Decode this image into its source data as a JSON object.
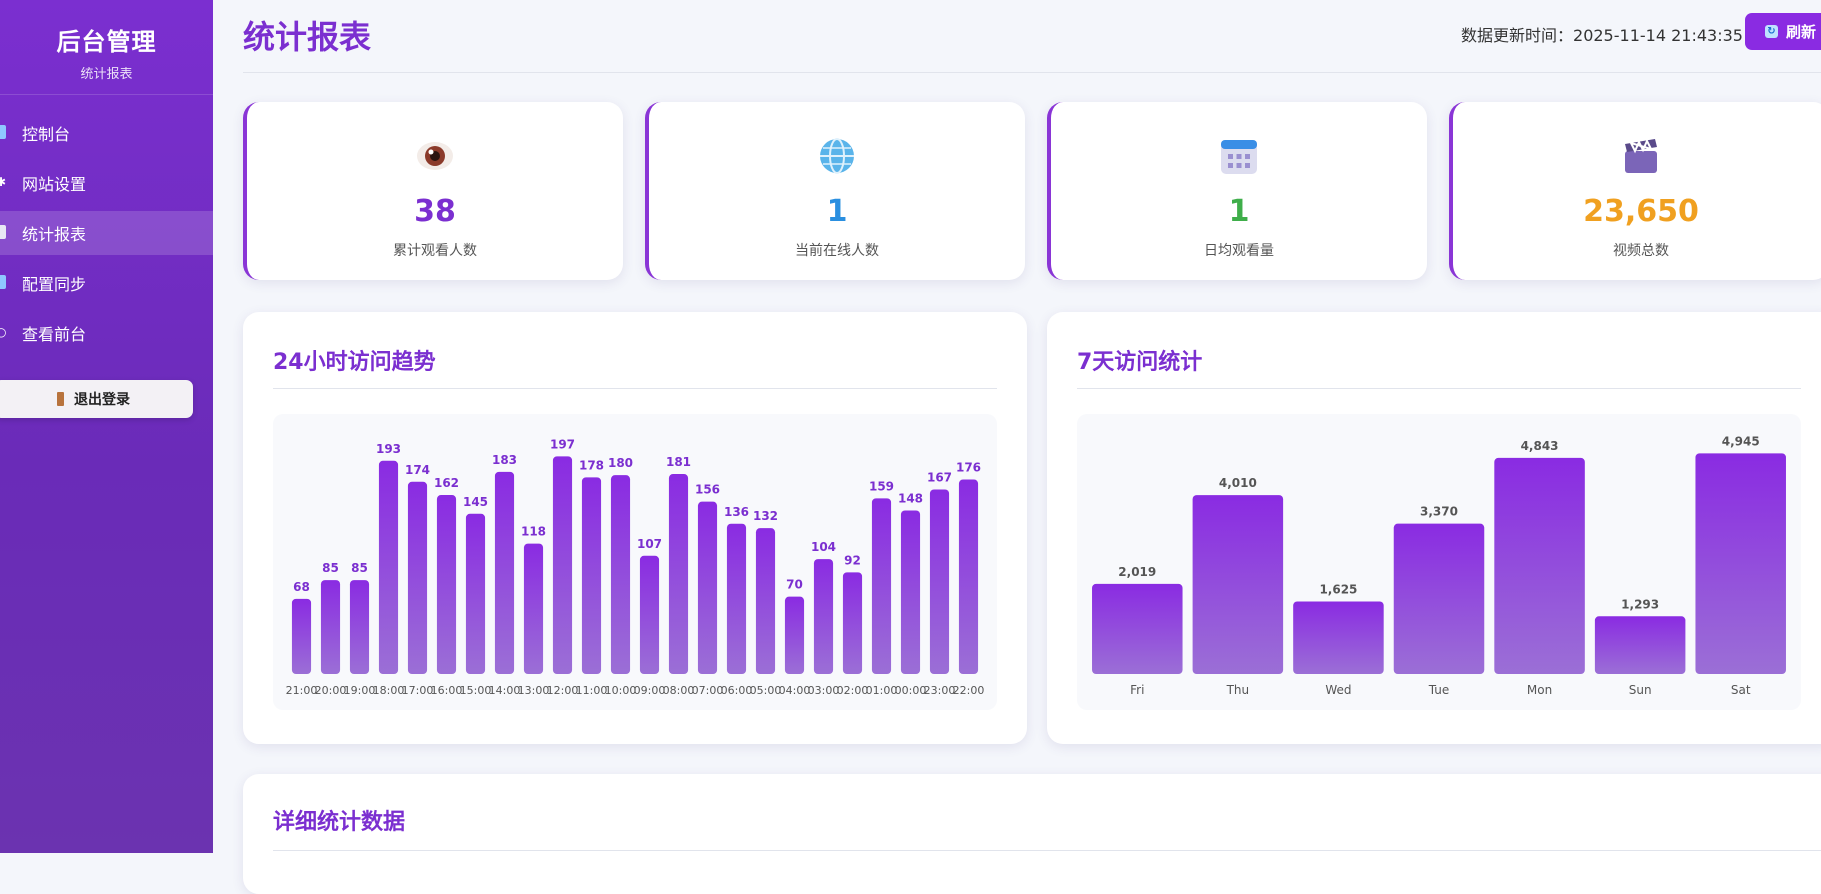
{
  "sidebar": {
    "title": "后台管理",
    "subtitle": "统计报表",
    "items": [
      {
        "label": "控制台",
        "icon": "dashboard-icon"
      },
      {
        "label": "网站设置",
        "icon": "gear-icon"
      },
      {
        "label": "统计报表",
        "icon": "report-icon",
        "active": true
      },
      {
        "label": "配置同步",
        "icon": "sync-icon"
      },
      {
        "label": "查看前台",
        "icon": "search-icon"
      }
    ],
    "logout_label": "退出登录"
  },
  "header": {
    "title": "统计报表",
    "update_label": "数据更新时间：",
    "update_time": "2025-11-14 21:43:35",
    "refresh_label": "刷新"
  },
  "stats": [
    {
      "value": "38",
      "label": "累计观看人数",
      "icon": "eye-icon",
      "color": "#7b2fd0"
    },
    {
      "value": "1",
      "label": "当前在线人数",
      "icon": "globe-icon",
      "color": "#2a8fe0"
    },
    {
      "value": "1",
      "label": "日均观看量",
      "icon": "calendar-icon",
      "color": "#3fae4a"
    },
    {
      "value": "23,650",
      "label": "视频总数",
      "icon": "clapper-icon",
      "color": "#f0a020"
    }
  ],
  "chart_data": [
    {
      "type": "bar",
      "title": "24小时访问趋势",
      "categories": [
        "21:00",
        "20:00",
        "19:00",
        "18:00",
        "17:00",
        "16:00",
        "15:00",
        "14:00",
        "13:00",
        "12:00",
        "11:00",
        "10:00",
        "09:00",
        "08:00",
        "07:00",
        "06:00",
        "05:00",
        "04:00",
        "03:00",
        "02:00",
        "01:00",
        "00:00",
        "23:00",
        "22:00"
      ],
      "values": [
        68,
        85,
        85,
        193,
        174,
        162,
        145,
        183,
        118,
        197,
        178,
        180,
        107,
        181,
        156,
        136,
        132,
        70,
        104,
        92,
        159,
        148,
        167,
        176
      ],
      "ylim": [
        0,
        210
      ],
      "grid": false
    },
    {
      "type": "bar",
      "title": "7天访问统计",
      "categories": [
        "Fri",
        "Thu",
        "Wed",
        "Tue",
        "Mon",
        "Sun",
        "Sat"
      ],
      "values": [
        2019,
        4010,
        1625,
        3370,
        4843,
        1293,
        4945
      ],
      "value_labels": [
        "2,019",
        "4,010",
        "1,625",
        "3,370",
        "4,843",
        "1,293",
        "4,945"
      ],
      "ylim": [
        0,
        5200
      ],
      "grid": false
    }
  ],
  "detail": {
    "title": "详细统计数据"
  }
}
